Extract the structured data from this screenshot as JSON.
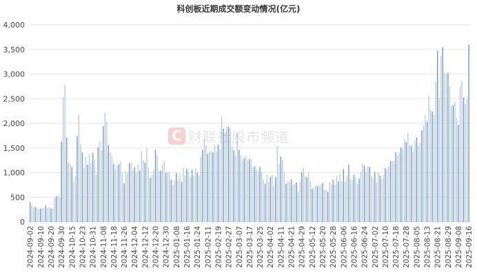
{
  "chart_data": {
    "type": "bar",
    "title": "科创板近期成交额变动情况(亿元)",
    "xlabel": "",
    "ylabel": "",
    "ylim": [
      0,
      4000
    ],
    "y_ticks": [
      "0",
      "500",
      "1,000",
      "1,500",
      "2,000",
      "2,500",
      "3,000",
      "3,500",
      "4,000"
    ],
    "grid": true,
    "x_tick_labels": [
      "2024-09-02",
      "2024-09-10",
      "2024-09-20",
      "2024-09-30",
      "2024-10-15",
      "2024-10-23",
      "2024-10-31",
      "2024-11-08",
      "2024-11-18",
      "2024-11-26",
      "2024-12-04",
      "2024-12-12",
      "2024-12-20",
      "2024-12-30",
      "2025-01-08",
      "2025-01-16",
      "2025-01-24",
      "2025-02-11",
      "2025-02-19",
      "2025-02-27",
      "2025-03-07",
      "2025-03-17",
      "2025-03-25",
      "2025-04-02",
      "2025-04-11",
      "2025-04-21",
      "2025-04-29",
      "2025-05-12",
      "2025-05-20",
      "2025-05-28",
      "2025-06-06",
      "2025-06-16",
      "2025-06-24",
      "2025-07-02",
      "2025-07-10",
      "2025-07-18",
      "2025-07-28",
      "2025-08-05",
      "2025-08-13",
      "2025-08-21",
      "2025-08-29",
      "2025-09-08",
      "2025-09-16"
    ],
    "tick_every": 6,
    "values": [
      400,
      330,
      290,
      300,
      290,
      260,
      270,
      280,
      280,
      330,
      280,
      300,
      270,
      270,
      480,
      520,
      540,
      500,
      1630,
      2530,
      2780,
      1710,
      1210,
      1180,
      1110,
      800,
      930,
      1740,
      2170,
      1570,
      1410,
      1090,
      1320,
      1160,
      1370,
      1190,
      1400,
      1240,
      960,
      1510,
      1630,
      1450,
      1940,
      2210,
      2040,
      1560,
      1410,
      1330,
      1170,
      1060,
      1150,
      1170,
      1230,
      990,
      780,
      1020,
      1000,
      1190,
      1200,
      1050,
      1110,
      1000,
      1170,
      1040,
      1440,
      1250,
      1200,
      1500,
      1100,
      890,
      960,
      1060,
      1460,
      1340,
      1040,
      1040,
      1150,
      1230,
      1000,
      990,
      1000,
      860,
      760,
      840,
      990,
      840,
      980,
      810,
      1100,
      940,
      1080,
      1020,
      920,
      1060,
      940,
      1090,
      1000,
      940,
      1310,
      1460,
      1680,
      1560,
      1380,
      1430,
      1440,
      1410,
      1560,
      1430,
      1570,
      1480,
      2140,
      1890,
      1810,
      1940,
      1930,
      1890,
      1530,
      1450,
      1340,
      1800,
      1460,
      1340,
      1240,
      1290,
      1330,
      1240,
      1280,
      1265,
      1110,
      1130,
      1060,
      1005,
      1110,
      1005,
      860,
      775,
      960,
      810,
      915,
      950,
      725,
      905,
      1540,
      1170,
      1325,
      1265,
      1030,
      775,
      835,
      800,
      865,
      750,
      775,
      800,
      615,
      820,
      1005,
      1100,
      935,
      905,
      1005,
      820,
      670,
      695,
      725,
      725,
      735,
      750,
      785,
      655,
      645,
      610,
      810,
      765,
      860,
      750,
      930,
      820,
      960,
      820,
      1070,
      820,
      925,
      1165,
      865,
      855,
      950,
      885,
      770,
      880,
      1020,
      1185,
      1140,
      1020,
      1120,
      1115,
      930,
      890,
      1005,
      805,
      1005,
      935,
      875,
      950,
      1090,
      1060,
      1120,
      1230,
      1240,
      1230,
      1410,
      1340,
      1410,
      1510,
      1480,
      1680,
      1620,
      1800,
      1550,
      1545,
      1425,
      1645,
      1715,
      1550,
      1610,
      1855,
      1955,
      2170,
      2030,
      2560,
      2275,
      2240,
      2170,
      2845,
      3470,
      2520,
      3370,
      3540,
      3025,
      3000,
      3025,
      2745,
      2350,
      2370,
      2435,
      2105,
      1970,
      2755,
      2860,
      2525,
      2395,
      2500,
      3600
    ],
    "colors": {
      "bar_dark": "#6f96cc",
      "bar_light": "#b8cbe6",
      "grid": "#e6e6e6",
      "axis_text": "#444444"
    }
  },
  "watermark": {
    "logo": "C",
    "text": "财联社股市频道"
  }
}
